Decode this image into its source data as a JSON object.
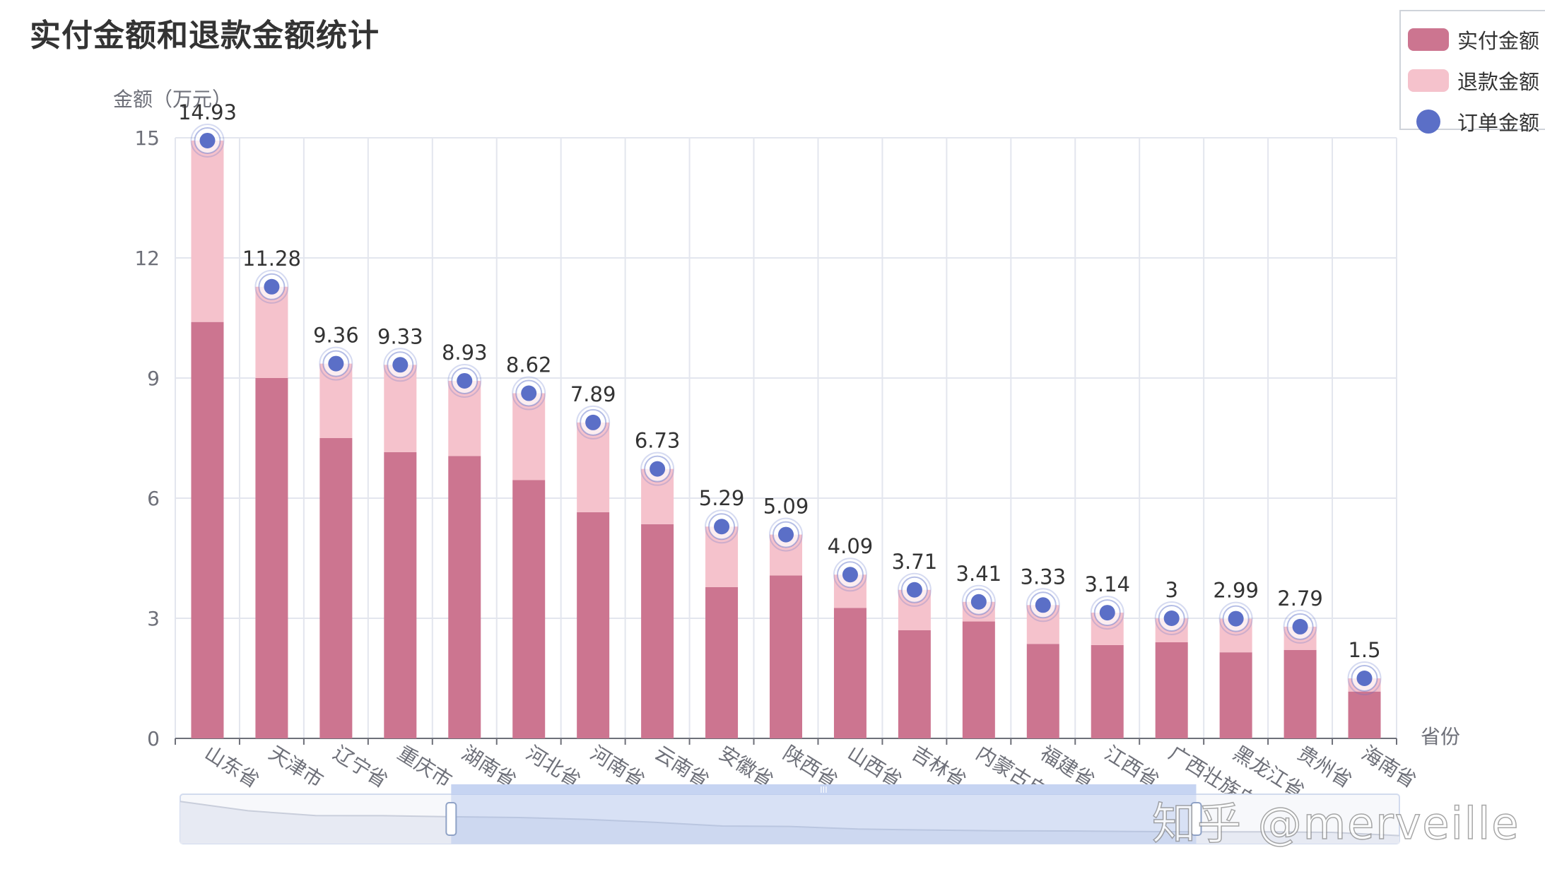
{
  "title": "实付金额和退款金额统计",
  "legend": [
    {
      "label": "实付金额",
      "color": "#cc7590",
      "shape": "rect"
    },
    {
      "label": "退款金额",
      "color": "#f5c2cc",
      "shape": "rect"
    },
    {
      "label": "订单金额",
      "color": "#5b6fc7",
      "shape": "circle"
    }
  ],
  "watermark": "知乎 @merveille",
  "chart_data": {
    "type": "bar",
    "title": "实付金额和退款金额统计",
    "ylabel": "金额（万元）",
    "xlabel": "省份",
    "ylim": [
      0,
      15
    ],
    "yticks": [
      0,
      3,
      6,
      9,
      12,
      15
    ],
    "grid": true,
    "legend_position": "top-right",
    "stacked": true,
    "categories": [
      "山东省",
      "天津市",
      "辽宁省",
      "重庆市",
      "湖南省",
      "河北省",
      "河南省",
      "云南省",
      "安徽省",
      "陕西省",
      "山西省",
      "吉林省",
      "内蒙古自治区",
      "福建省",
      "江西省",
      "广西壮族自治区",
      "黑龙江省",
      "贵州省",
      "海南省"
    ],
    "series": [
      {
        "name": "实付金额",
        "type": "bar",
        "color": "#cc7590",
        "values": [
          10.4,
          9.0,
          7.5,
          7.15,
          7.05,
          6.45,
          5.65,
          5.35,
          3.78,
          4.07,
          3.26,
          2.7,
          2.92,
          2.36,
          2.33,
          2.4,
          2.15,
          2.21,
          1.17
        ]
      },
      {
        "name": "退款金额",
        "type": "bar",
        "color": "#f5c2cc",
        "values": [
          4.53,
          2.28,
          1.86,
          2.18,
          1.88,
          2.17,
          2.24,
          1.38,
          1.51,
          1.02,
          0.83,
          1.01,
          0.49,
          0.97,
          0.81,
          0.6,
          0.84,
          0.58,
          0.33
        ]
      },
      {
        "name": "订单金额",
        "type": "scatter",
        "color": "#5b6fc7",
        "values": [
          14.93,
          11.28,
          9.36,
          9.33,
          8.93,
          8.62,
          7.89,
          6.73,
          5.29,
          5.09,
          4.09,
          3.71,
          3.41,
          3.33,
          3.14,
          3,
          2.99,
          2.79,
          1.5
        ],
        "labels": [
          "14.93",
          "11.28",
          "9.36",
          "9.33",
          "8.93",
          "8.62",
          "7.89",
          "6.73",
          "5.29",
          "5.09",
          "4.09",
          "3.71",
          "3.41",
          "3.33",
          "3.14",
          "3",
          "2.99",
          "2.79",
          "1.5"
        ]
      }
    ],
    "datazoom": {
      "start_index": 4,
      "end_index": 15,
      "handle_label": "III"
    }
  }
}
